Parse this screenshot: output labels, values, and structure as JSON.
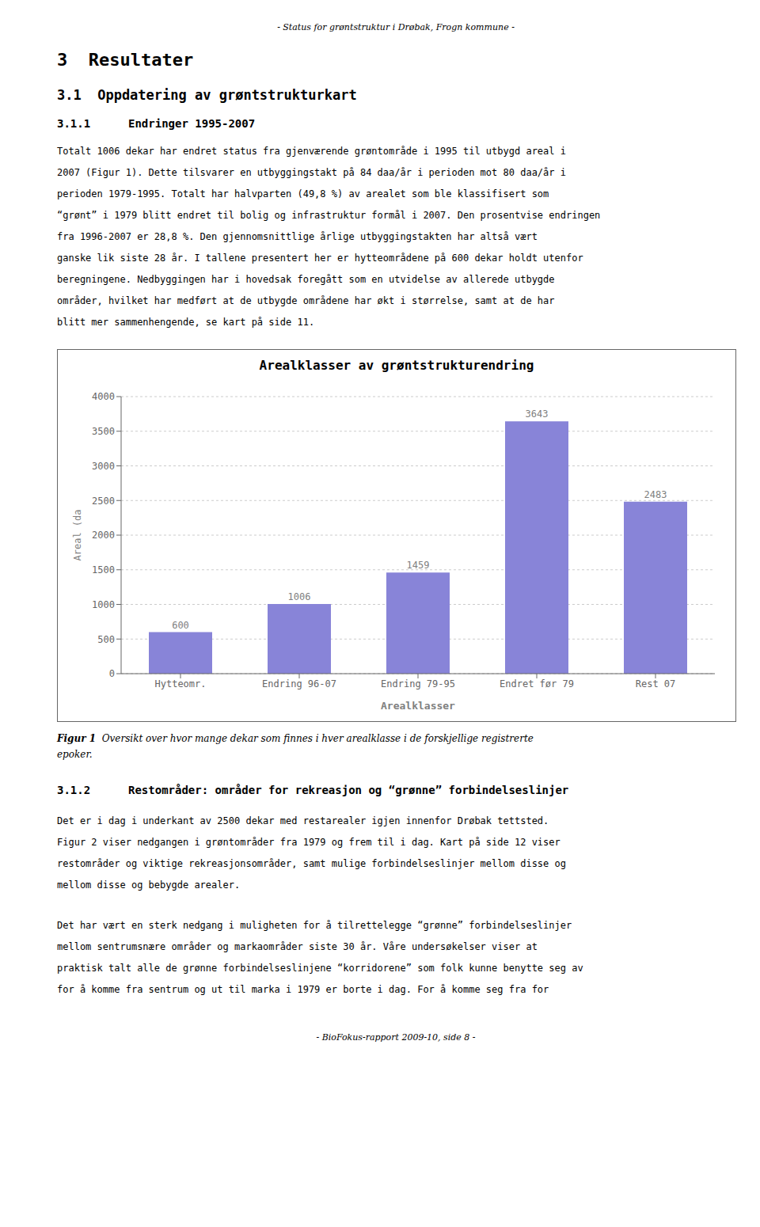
{
  "page_header": "- Status for grøntstruktur i Drøbak, Frogn kommune -",
  "page_footer": "- BioFokus-rapport 2009-10, side 8 -",
  "section_heading": "3  Resultater",
  "subsection_heading": "3.1  Oppdatering av grøntstrukturkart",
  "subsubsection_num": "3.1.1",
  "subsubsection_title": "Endringer 1995-2007",
  "paragraph1_lines": [
    "Totalt 1006 dekar har endret status fra gjenværende grøntområde i 1995 til utbygd areal i",
    "2007 (Figur 1). Dette tilsvarer en utbyggingstakt på 84 daa/år i perioden mot 80 daa/år i",
    "perioden 1979-1995. Totalt har halvparten (49,8 %) av arealet som ble klassifisert som",
    "“grønt” i 1979 blitt endret til bolig og infrastruktur formål i 2007. Den prosentvise endringen",
    "fra 1996-2007 er 28,8 %. Den gjennomsnittlige årlige utbyggingstakten har altså vært",
    "ganske lik siste 28 år. I tallene presentert her er hytteområdene på 600 dekar holdt utenfor",
    "beregningene. Nedbyggingen har i hovedsak foregått som en utvidelse av allerede utbygde",
    "områder, hvilket har medført at de utbygde områdene har økt i størrelse, samt at de har",
    "blitt mer sammenhengende, se kart på side 11."
  ],
  "chart_data": {
    "type": "bar",
    "title": "Arealklasser av grøntstrukturendring",
    "x_label": "Arealklasser",
    "y_label": "Areal (da",
    "categories": [
      "Hytteomr.",
      "Endring 96-07",
      "Endring 79-95",
      "Endret før 79",
      "Rest 07"
    ],
    "values": [
      600,
      1006,
      1459,
      3643,
      2483
    ],
    "color": "#8884d8",
    "ylim": [
      0,
      4000
    ],
    "yticks": [
      0,
      500,
      1000,
      1500,
      2000,
      2500,
      3000,
      3500,
      4000
    ],
    "grid": true,
    "data_labels": true
  },
  "figure_caption_bold": "Figur 1",
  "figure_caption_rest": "  Oversikt over hvor mange dekar som finnes i hver arealklasse i de forskjellige registrerte",
  "figure_caption_rest2": "epoker.",
  "subsubsection2_num": "3.1.2",
  "subsubsection2_title": "Restområder: områder for rekreasjon og “grønne” forbindelseslinjer",
  "paragraph2_lines": [
    "Det er i dag i underkant av 2500 dekar med restarealer igjen innenfor Drøbak tettsted.",
    "Figur 2 viser nedgangen i grøntområder fra 1979 og frem til i dag. Kart på side 12 viser",
    "restområder og viktige rekreasjonsområder, samt mulige forbindelseslinjer mellom disse og",
    "mellom disse og bebygde arealer."
  ],
  "paragraph3_lines": [
    "Det har vært en sterk nedgang i muligheten for å tilrettelegge “grønne” forbindelseslinjer",
    "mellom sentrumsnære områder og markaområder siste 30 år. Våre undersøkelser viser at",
    "praktisk talt alle de grønne forbindelseslinjene “korridorene” som folk kunne benytte seg av",
    "for å komme fra sentrum og ut til marka i 1979 er borte i dag. For å komme seg fra for"
  ]
}
